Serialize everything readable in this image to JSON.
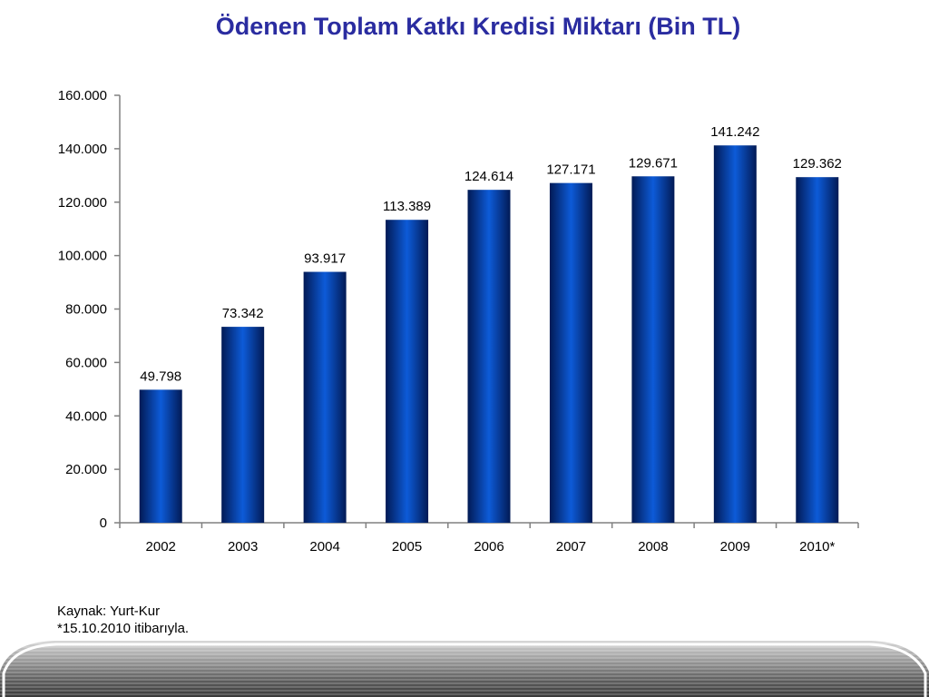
{
  "chart_data": {
    "type": "bar",
    "title": "Ödenen Toplam Katkı Kredisi Miktarı (Bin TL)",
    "categories": [
      "2002",
      "2003",
      "2004",
      "2005",
      "2006",
      "2007",
      "2008",
      "2009",
      "2010*"
    ],
    "values": [
      49798,
      73342,
      93917,
      113389,
      124614,
      127171,
      129671,
      141242,
      129362
    ],
    "value_labels": [
      "49.798",
      "73.342",
      "93.917",
      "113.389",
      "124.614",
      "127.171",
      "129.671",
      "141.242",
      "129.362"
    ],
    "ylim": [
      0,
      160000
    ],
    "y_ticks": [
      0,
      20000,
      40000,
      60000,
      80000,
      100000,
      120000,
      140000,
      160000
    ],
    "y_tick_labels": [
      "0",
      "20.000",
      "40.000",
      "60.000",
      "80.000",
      "100.000",
      "120.000",
      "140.000",
      "160.000"
    ],
    "xlabel": "",
    "ylabel": "",
    "grid": false,
    "bar_color": "#0a3fa0"
  },
  "notes": {
    "source": "Kaynak: Yurt-Kur",
    "footnote": "*15.10.2010 itibarıyla."
  }
}
